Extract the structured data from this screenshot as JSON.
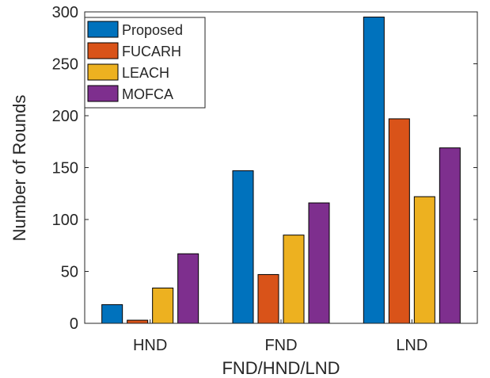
{
  "chart_data": {
    "type": "bar",
    "title": "",
    "xlabel": "FND/HND/LND",
    "ylabel": "Number of Rounds",
    "categories": [
      "HND",
      "FND",
      "LND"
    ],
    "ylim": [
      0,
      300
    ],
    "yticks": [
      0,
      50,
      100,
      150,
      200,
      250,
      300
    ],
    "grid": false,
    "legend_position": "top-left",
    "series": [
      {
        "name": "Proposed",
        "color": "#0072BD",
        "values": [
          18,
          147,
          295
        ]
      },
      {
        "name": "FUCARH",
        "color": "#D95319",
        "values": [
          3,
          47,
          197
        ]
      },
      {
        "name": "LEACH",
        "color": "#EDB120",
        "values": [
          34,
          85,
          122
        ]
      },
      {
        "name": "MOFCA",
        "color": "#7E2F8E",
        "values": [
          67,
          116,
          169
        ]
      }
    ]
  }
}
